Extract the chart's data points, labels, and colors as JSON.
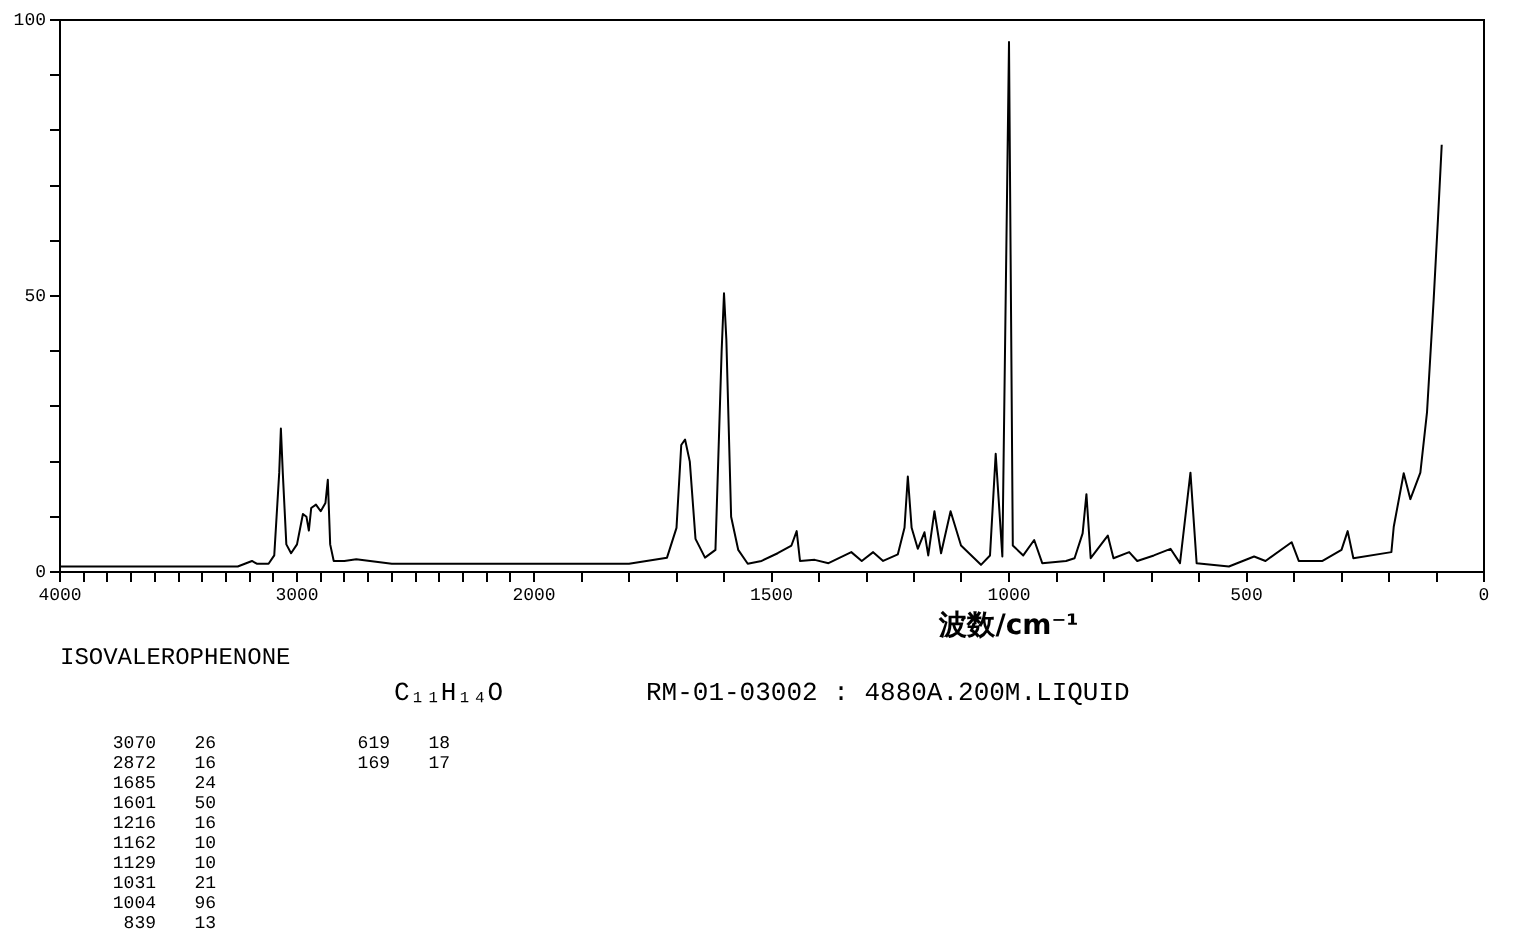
{
  "chart_data": [
    {
      "type": "line",
      "xlim": [
        4000,
        2000
      ],
      "ylim": [
        0,
        100
      ],
      "xticks": [
        4000,
        {
          "value": 3900,
          "label": null
        },
        {
          "value": 3800,
          "label": null
        },
        {
          "value": 3700,
          "label": null
        },
        {
          "value": 3600,
          "label": null
        },
        {
          "value": 3500,
          "label": null
        },
        {
          "value": 3400,
          "label": null
        },
        {
          "value": 3300,
          "label": null
        },
        {
          "value": 3200,
          "label": null
        },
        {
          "value": 3100,
          "label": null
        },
        3000,
        {
          "value": 2900,
          "label": null
        },
        {
          "value": 2800,
          "label": null
        },
        {
          "value": 2700,
          "label": null
        },
        {
          "value": 2600,
          "label": null
        },
        {
          "value": 2500,
          "label": null
        },
        {
          "value": 2400,
          "label": null
        },
        {
          "value": 2300,
          "label": null
        },
        {
          "value": 2200,
          "label": null
        },
        {
          "value": 2100,
          "label": null
        },
        2000
      ],
      "yticks": [
        0,
        {
          "value": 10,
          "label": null
        },
        {
          "value": 20,
          "label": null
        },
        {
          "value": 30,
          "label": null
        },
        {
          "value": 40,
          "label": null
        },
        50,
        {
          "value": 60,
          "label": null
        },
        {
          "value": 70,
          "label": null
        },
        {
          "value": 80,
          "label": null
        },
        {
          "value": 90,
          "label": null
        },
        100
      ],
      "marker": "none",
      "line_style": "solid",
      "series": [
        {
          "color": "#000000",
          "x": [
            4000,
            3400,
            3250,
            3190,
            3170,
            3120,
            3096,
            3075,
            3068,
            3060,
            3045,
            3025,
            3000,
            2975,
            2960,
            2950,
            2940,
            2920,
            2900,
            2880,
            2870,
            2860,
            2845,
            2800,
            2750,
            2600,
            2000
          ],
          "values": [
            1,
            1,
            1,
            2,
            1.5,
            1.5,
            3,
            18,
            26,
            18,
            5,
            3.4,
            5,
            10.5,
            10,
            7.5,
            11.6,
            12.2,
            11,
            12.5,
            16.7,
            5,
            2,
            2,
            2.3,
            1.5,
            1.5
          ]
        }
      ],
      "annotations": [
        "ISOVALEROPHENONE",
        "C₁₁H₁₄O",
        "RM-01-03002 : 4880A.200M.LIQUID",
        "3070 26",
        "2872 16",
        "1685 24",
        "1601 50",
        "1216 16",
        "1162 10",
        "1129 10",
        "1031 21",
        "1004 96",
        "839 13",
        "619 18",
        "169 17"
      ]
    },
    {
      "type": "line",
      "xlabel": "波数/cm⁻¹",
      "xlim": [
        2000,
        0
      ],
      "ylim": [
        0,
        100
      ],
      "tick_labels": "x",
      "xticks": [
        {
          "value": 2000,
          "label": null
        },
        {
          "value": 1900,
          "label": null
        },
        {
          "value": 1800,
          "label": null
        },
        {
          "value": 1700,
          "label": null
        },
        {
          "value": 1600,
          "label": null
        },
        1500,
        {
          "value": 1400,
          "label": null
        },
        {
          "value": 1300,
          "label": null
        },
        {
          "value": 1200,
          "label": null
        },
        {
          "value": 1100,
          "label": null
        },
        1000,
        {
          "value": 900,
          "label": null
        },
        {
          "value": 800,
          "label": null
        },
        {
          "value": 700,
          "label": null
        },
        {
          "value": 600,
          "label": null
        },
        500,
        {
          "value": 400,
          "label": null
        },
        {
          "value": 300,
          "label": null
        },
        {
          "value": 200,
          "label": null
        },
        {
          "value": 100,
          "label": null
        },
        0
      ],
      "marker": "none",
      "line_style": "solid",
      "series": [
        {
          "color": "#000000",
          "x": [
            2000,
            1800,
            1720,
            1700,
            1690,
            1682,
            1672,
            1660,
            1640,
            1618,
            1605,
            1600,
            1595,
            1585,
            1570,
            1550,
            1521,
            1487,
            1458,
            1447,
            1440,
            1409,
            1380,
            1332,
            1310,
            1286,
            1265,
            1234,
            1220,
            1213,
            1205,
            1192,
            1178,
            1170,
            1157,
            1143,
            1123,
            1101,
            1059,
            1040,
            1028,
            1014,
            1000,
            992,
            970,
            947,
            930,
            880,
            862,
            845,
            837,
            828,
            792,
            780,
            747,
            730,
            695,
            660,
            640,
            618,
            605,
            537,
            484,
            460,
            405,
            390,
            340,
            300,
            287,
            275,
            195,
            190,
            169,
            155,
            134,
            120,
            106,
            97,
            89
          ],
          "values": [
            1.5,
            1.5,
            2.6,
            8,
            23,
            24,
            20,
            6,
            2.6,
            4,
            40,
            50.5,
            42,
            10,
            4,
            1.5,
            2,
            3.4,
            4.8,
            7.4,
            2,
            2.2,
            1.6,
            3.6,
            2,
            3.6,
            2,
            3.2,
            8,
            17.3,
            8,
            4.2,
            7.2,
            3,
            11,
            3.4,
            11,
            4.8,
            1.3,
            3,
            21.4,
            2.8,
            96,
            4.8,
            3,
            5.8,
            1.6,
            2,
            2.5,
            7,
            14.1,
            2.5,
            6.6,
            2.5,
            3.6,
            2,
            3,
            4.2,
            1.6,
            18,
            1.6,
            1,
            2.8,
            2,
            5.4,
            2,
            2,
            4,
            7.4,
            2.5,
            3.6,
            8.2,
            17.9,
            13.2,
            18,
            28.9,
            49.3,
            63.8,
            77.4
          ]
        }
      ]
    }
  ]
}
